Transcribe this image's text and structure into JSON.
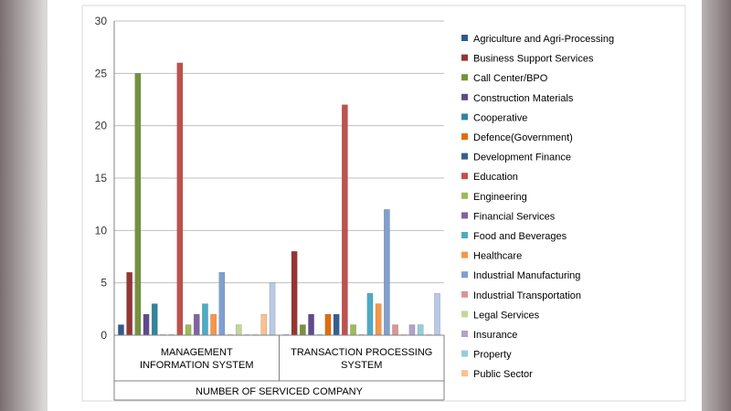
{
  "chart_data": {
    "type": "bar",
    "xlabel": "NUMBER OF SERVICED COMPANY",
    "ylabel": "",
    "ylim": [
      0,
      30
    ],
    "yticks": [
      0,
      5,
      10,
      15,
      20,
      25,
      30
    ],
    "grid": "horizontal",
    "legend": "right",
    "categories": [
      [
        "MANAGEMENT",
        "INFORMATION SYSTEM"
      ],
      [
        "TRANSACTION PROCESSING",
        "SYSTEM"
      ]
    ],
    "series": [
      {
        "name": "Agriculture and Agri-Processing",
        "color": "#2f5b8c",
        "values": [
          1,
          0
        ]
      },
      {
        "name": "Business Support Services",
        "color": "#943634",
        "values": [
          6,
          8
        ]
      },
      {
        "name": "Call Center/BPO",
        "color": "#76923c",
        "values": [
          25,
          1
        ]
      },
      {
        "name": "Construction Materials",
        "color": "#5f4b8b",
        "values": [
          2,
          2
        ]
      },
      {
        "name": "Cooperative",
        "color": "#31859c",
        "values": [
          3,
          0
        ]
      },
      {
        "name": "Defence(Government)",
        "color": "#e36c09",
        "values": [
          0,
          2
        ]
      },
      {
        "name": "Development Finance",
        "color": "#365f91",
        "values": [
          0,
          2
        ]
      },
      {
        "name": "Education",
        "color": "#c0504d",
        "values": [
          26,
          22
        ]
      },
      {
        "name": "Engineering",
        "color": "#9bbb59",
        "values": [
          1,
          1
        ]
      },
      {
        "name": "Financial Services",
        "color": "#8064a2",
        "values": [
          2,
          0
        ]
      },
      {
        "name": "Food and Beverages",
        "color": "#4bacc6",
        "values": [
          3,
          4
        ]
      },
      {
        "name": "Healthcare",
        "color": "#f79646",
        "values": [
          2,
          3
        ]
      },
      {
        "name": "Industrial Manufacturing",
        "color": "#7f9fd0",
        "values": [
          6,
          12
        ]
      },
      {
        "name": "Industrial Transportation",
        "color": "#d99694",
        "values": [
          0,
          1
        ]
      },
      {
        "name": "Legal Services",
        "color": "#c3d69b",
        "values": [
          1,
          0
        ]
      },
      {
        "name": "Insurance",
        "color": "#b3a2c7",
        "values": [
          0,
          1
        ]
      },
      {
        "name": "Property",
        "color": "#93cddd",
        "values": [
          0,
          1
        ]
      },
      {
        "name": "Public Sector",
        "color": "#fac090",
        "values": [
          2,
          0
        ]
      },
      {
        "name": "",
        "color": "#b9c9e6",
        "values": [
          5,
          4
        ]
      }
    ]
  }
}
